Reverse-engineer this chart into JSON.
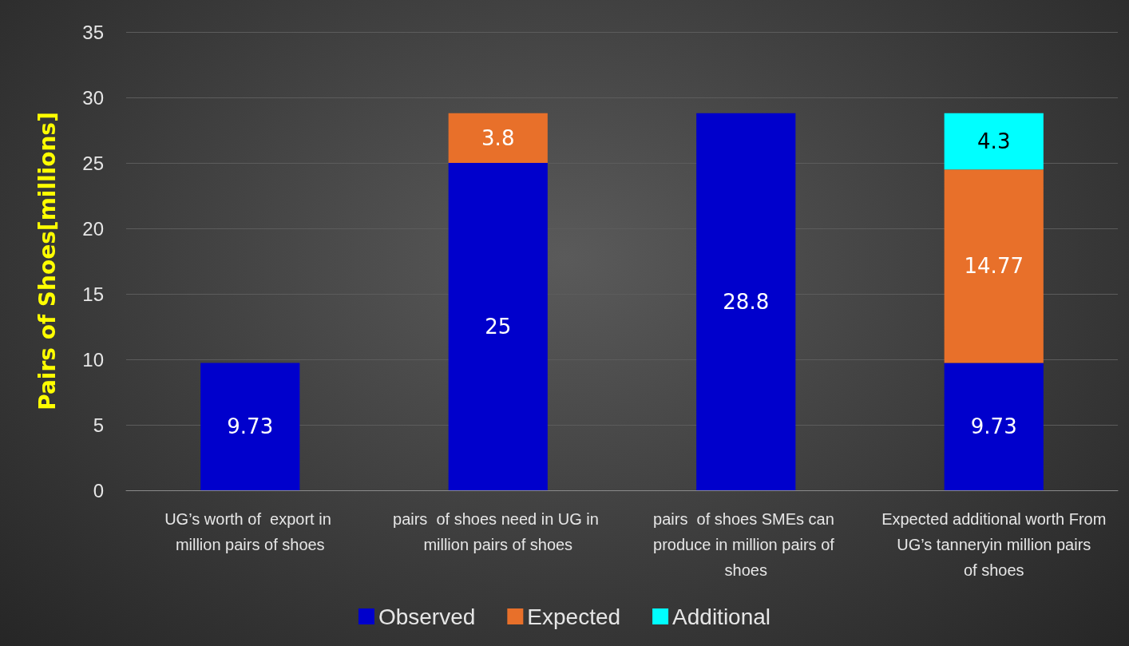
{
  "chart_data": {
    "type": "bar",
    "ylabel": "Pairs of Shoes[millions]",
    "categories": [
      "UG’s worth of  export in million pairs of shoes",
      "pairs  of shoes need in UG in million pairs of shoes",
      "pairs  of shoes SMEs can produce in million pairs of shoes",
      "Expected additional worth From UG’s tanneryin million pairs of shoes"
    ],
    "series": [
      {
        "name": "Observed",
        "color": "#0000cc",
        "values": [
          9.73,
          25,
          28.8,
          9.73
        ]
      },
      {
        "name": "Expected",
        "color": "#e8702a",
        "values": [
          null,
          3.8,
          null,
          14.77
        ]
      },
      {
        "name": "Additional",
        "color": "#00ffff",
        "values": [
          null,
          null,
          null,
          4.3
        ]
      }
    ],
    "stacked": true,
    "data_labels": true,
    "ylim": [
      0,
      35
    ],
    "yticks": [
      0,
      5,
      10,
      15,
      20,
      25,
      30,
      35
    ],
    "grid": "y",
    "legend": "bottom"
  }
}
